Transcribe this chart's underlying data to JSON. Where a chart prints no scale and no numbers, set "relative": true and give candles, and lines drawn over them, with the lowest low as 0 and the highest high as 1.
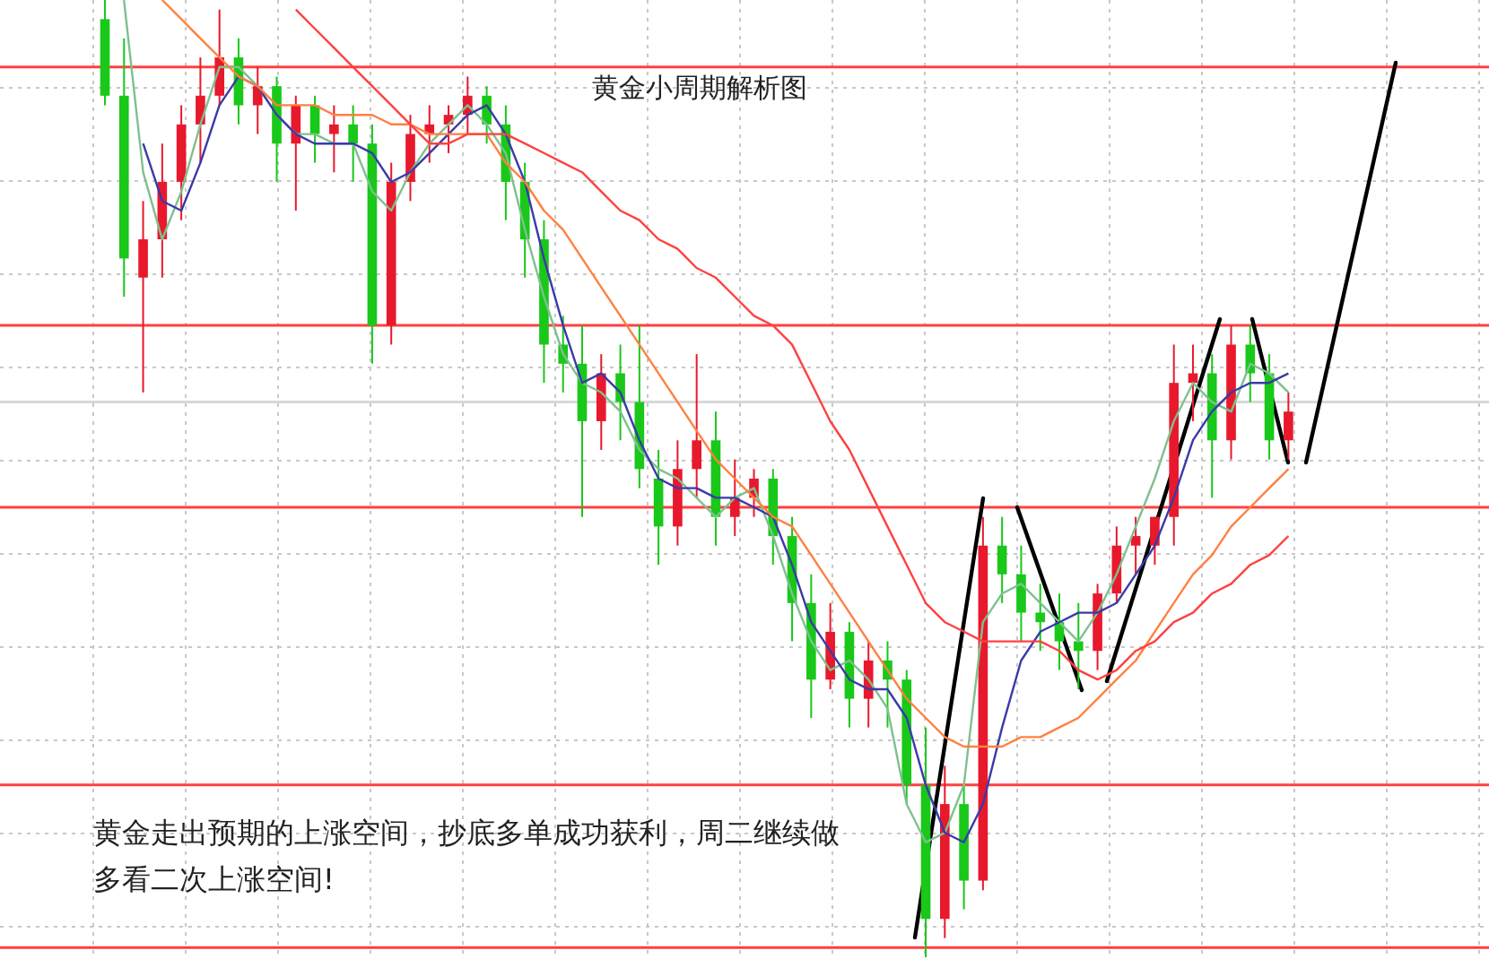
{
  "chart_data": {
    "type": "candlestick",
    "title": "黄金小周期解析图",
    "relative": true,
    "grid": true,
    "categories": [
      null,
      null,
      null,
      null,
      null,
      null,
      null,
      null,
      null,
      null,
      null,
      null,
      null,
      null,
      null,
      null,
      null,
      null,
      null,
      null,
      null,
      null,
      null,
      null,
      null,
      null,
      null,
      null,
      null,
      null,
      null,
      null,
      null,
      null,
      null,
      null,
      null,
      null,
      null,
      null,
      null,
      null,
      null,
      null,
      null,
      null,
      null,
      null,
      null,
      null,
      null,
      null,
      null,
      null,
      null,
      null,
      null,
      null,
      null,
      null,
      null,
      null,
      null
    ],
    "ohlc": [
      [
        0.98,
        1.0,
        0.89,
        0.9
      ],
      [
        0.9,
        0.96,
        0.69,
        0.73
      ],
      [
        0.71,
        0.79,
        0.59,
        0.75
      ],
      [
        0.75,
        0.85,
        0.71,
        0.81
      ],
      [
        0.81,
        0.89,
        0.77,
        0.87
      ],
      [
        0.87,
        0.94,
        0.83,
        0.9
      ],
      [
        0.9,
        0.99,
        0.89,
        0.94
      ],
      [
        0.94,
        0.96,
        0.87,
        0.89
      ],
      [
        0.89,
        0.93,
        0.86,
        0.91
      ],
      [
        0.91,
        0.92,
        0.81,
        0.85
      ],
      [
        0.85,
        0.9,
        0.78,
        0.89
      ],
      [
        0.89,
        0.9,
        0.83,
        0.86
      ],
      [
        0.86,
        0.89,
        0.82,
        0.87
      ],
      [
        0.87,
        0.89,
        0.81,
        0.85
      ],
      [
        0.85,
        0.87,
        0.62,
        0.66
      ],
      [
        0.66,
        0.83,
        0.64,
        0.81
      ],
      [
        0.81,
        0.88,
        0.79,
        0.86
      ],
      [
        0.86,
        0.89,
        0.83,
        0.87
      ],
      [
        0.87,
        0.89,
        0.84,
        0.88
      ],
      [
        0.88,
        0.92,
        0.86,
        0.9
      ],
      [
        0.9,
        0.91,
        0.85,
        0.87
      ],
      [
        0.87,
        0.89,
        0.77,
        0.81
      ],
      [
        0.81,
        0.83,
        0.71,
        0.75
      ],
      [
        0.75,
        0.77,
        0.6,
        0.64
      ],
      [
        0.64,
        0.67,
        0.59,
        0.62
      ],
      [
        0.62,
        0.66,
        0.46,
        0.56
      ],
      [
        0.56,
        0.63,
        0.53,
        0.61
      ],
      [
        0.61,
        0.64,
        0.54,
        0.58
      ],
      [
        0.58,
        0.66,
        0.49,
        0.51
      ],
      [
        0.5,
        0.53,
        0.41,
        0.45
      ],
      [
        0.45,
        0.54,
        0.43,
        0.51
      ],
      [
        0.51,
        0.63,
        0.48,
        0.54
      ],
      [
        0.54,
        0.57,
        0.43,
        0.46
      ],
      [
        0.46,
        0.52,
        0.44,
        0.48
      ],
      [
        0.48,
        0.51,
        0.46,
        0.5
      ],
      [
        0.5,
        0.51,
        0.41,
        0.44
      ],
      [
        0.44,
        0.46,
        0.33,
        0.37
      ],
      [
        0.37,
        0.4,
        0.25,
        0.29
      ],
      [
        0.29,
        0.37,
        0.28,
        0.34
      ],
      [
        0.34,
        0.35,
        0.24,
        0.27
      ],
      [
        0.27,
        0.33,
        0.24,
        0.31
      ],
      [
        0.31,
        0.33,
        0.24,
        0.29
      ],
      [
        0.29,
        0.3,
        0.16,
        0.18
      ],
      [
        0.18,
        0.24,
        0,
        0.04
      ],
      [
        0.04,
        0.2,
        0.02,
        0.16
      ],
      [
        0.16,
        0.18,
        0.05,
        0.08
      ],
      [
        0.08,
        0.46,
        0.07,
        0.43
      ],
      [
        0.43,
        0.46,
        0.37,
        0.4
      ],
      [
        0.4,
        0.43,
        0.33,
        0.36
      ],
      [
        0.36,
        0.39,
        0.32,
        0.35
      ],
      [
        0.35,
        0.38,
        0.3,
        0.33
      ],
      [
        0.33,
        0.37,
        0.28,
        0.32
      ],
      [
        0.32,
        0.39,
        0.3,
        0.38
      ],
      [
        0.38,
        0.45,
        0.37,
        0.43
      ],
      [
        0.43,
        0.46,
        0.4,
        0.44
      ],
      [
        0.43,
        0.46,
        0.41,
        0.46
      ],
      [
        0.46,
        0.64,
        0.43,
        0.6
      ],
      [
        0.6,
        0.64,
        0.56,
        0.61
      ],
      [
        0.61,
        0.63,
        0.48,
        0.54
      ],
      [
        0.54,
        0.66,
        0.52,
        0.64
      ],
      [
        0.64,
        0.66,
        0.58,
        0.61
      ],
      [
        0.61,
        0.63,
        0.52,
        0.54
      ],
      [
        0.54,
        0.59,
        0.52,
        0.57
      ]
    ],
    "colors": [
      "#19c819",
      "#19c819",
      "#e8192c",
      "#e8192c",
      "#e8192c",
      "#e8192c",
      "#e8192c",
      "#19c819",
      "#e8192c",
      "#19c819",
      "#e8192c",
      "#19c819",
      "#e8192c",
      "#19c819",
      "#19c819",
      "#e8192c",
      "#e8192c",
      "#e8192c",
      "#e8192c",
      "#e8192c",
      "#19c819",
      "#19c819",
      "#19c819",
      "#19c819",
      "#19c819",
      "#19c819",
      "#e8192c",
      "#19c819",
      "#19c819",
      "#19c819",
      "#e8192c",
      "#e8192c",
      "#19c819",
      "#e8192c",
      "#e8192c",
      "#19c819",
      "#19c819",
      "#19c819",
      "#e8192c",
      "#19c819",
      "#e8192c",
      "#19c819",
      "#19c819",
      "#19c819",
      "#e8192c",
      "#19c819",
      "#e8192c",
      "#19c819",
      "#19c819",
      "#19c819",
      "#19c819",
      "#19c819",
      "#e8192c",
      "#e8192c",
      "#e8192c",
      "#e8192c",
      "#e8192c",
      "#e8192c",
      "#19c819",
      "#e8192c",
      "#19c819",
      "#19c819",
      "#e8192c"
    ],
    "series": [
      {
        "type": "line",
        "color": "#7fc08f",
        "values": [
          null,
          1.0,
          0.82,
          0.75,
          0.8,
          0.87,
          0.93,
          0.93,
          0.91,
          0.88,
          0.86,
          0.86,
          0.85,
          0.85,
          0.8,
          0.78,
          0.82,
          0.85,
          0.87,
          0.89,
          0.87,
          0.84,
          0.76,
          0.69,
          0.63,
          0.6,
          0.59,
          0.57,
          0.53,
          0.51,
          0.5,
          0.48,
          0.46,
          0.48,
          0.49,
          0.44,
          0.38,
          0.33,
          0.3,
          0.31,
          0.29,
          0.26,
          0.16,
          0.12,
          0.13,
          0.18,
          0.35,
          0.38,
          0.39,
          0.37,
          0.35,
          0.33,
          0.36,
          0.4,
          0.45,
          0.5,
          0.56,
          0.6,
          0.58,
          0.57,
          0.62,
          0.61,
          0.59
        ]
      },
      {
        "type": "line",
        "color": "#3a3aa8",
        "values": [
          null,
          null,
          0.85,
          0.79,
          0.78,
          0.83,
          0.89,
          0.92,
          0.91,
          0.88,
          0.86,
          0.85,
          0.85,
          0.85,
          0.84,
          0.81,
          0.82,
          0.84,
          0.86,
          0.88,
          0.89,
          0.86,
          0.81,
          0.73,
          0.66,
          0.6,
          0.61,
          0.59,
          0.54,
          0.5,
          0.49,
          0.49,
          0.48,
          0.48,
          0.47,
          0.46,
          0.41,
          0.35,
          0.32,
          0.29,
          0.28,
          0.28,
          0.25,
          0.18,
          0.13,
          0.12,
          0.16,
          0.24,
          0.31,
          0.34,
          0.35,
          0.36,
          0.36,
          0.37,
          0.4,
          0.43,
          0.48,
          0.54,
          0.57,
          0.59,
          0.6,
          0.6,
          0.61
        ]
      },
      {
        "type": "line",
        "color": "#ff8040",
        "values": [
          null,
          null,
          null,
          1.0,
          0.98,
          0.96,
          0.94,
          0.92,
          0.91,
          0.89,
          0.89,
          0.89,
          0.88,
          0.88,
          0.88,
          0.87,
          0.87,
          0.86,
          0.86,
          0.86,
          0.86,
          0.83,
          0.81,
          0.78,
          0.76,
          0.73,
          0.7,
          0.67,
          0.64,
          0.61,
          0.58,
          0.55,
          0.52,
          0.5,
          0.48,
          0.46,
          0.45,
          0.42,
          0.39,
          0.36,
          0.33,
          0.3,
          0.27,
          0.25,
          0.23,
          0.22,
          0.22,
          0.22,
          0.23,
          0.23,
          0.24,
          0.25,
          0.27,
          0.29,
          0.31,
          0.34,
          0.37,
          0.4,
          0.42,
          0.45,
          0.47,
          0.49,
          0.51
        ]
      },
      {
        "type": "line",
        "color": "#ff4040",
        "values": [
          null,
          null,
          null,
          null,
          null,
          null,
          null,
          null,
          null,
          null,
          0.99,
          0.97,
          0.95,
          0.93,
          0.91,
          0.89,
          0.87,
          0.85,
          0.85,
          0.86,
          0.86,
          0.86,
          0.85,
          0.84,
          0.83,
          0.82,
          0.8,
          0.78,
          0.77,
          0.75,
          0.74,
          0.72,
          0.71,
          0.69,
          0.67,
          0.66,
          0.64,
          0.6,
          0.56,
          0.53,
          0.49,
          0.45,
          0.41,
          0.37,
          0.35,
          0.34,
          0.33,
          0.33,
          0.33,
          0.33,
          0.32,
          0.3,
          0.29,
          0.3,
          0.32,
          0.33,
          0.35,
          0.36,
          0.38,
          0.39,
          0.41,
          0.42,
          0.44
        ]
      }
    ],
    "ref_lines": [
      {
        "axis": "y",
        "value": 0.93,
        "color": "#ff4040"
      },
      {
        "axis": "y",
        "value": 0.66,
        "color": "#ff4040"
      },
      {
        "axis": "y",
        "value": 0.58,
        "color": "#d8d8d8"
      },
      {
        "axis": "y",
        "value": 0.47,
        "color": "#ff4040"
      },
      {
        "axis": "y",
        "value": 0.18,
        "color": "#ff4040"
      },
      {
        "axis": "y",
        "value": 0.01,
        "color": "#ff4040"
      }
    ],
    "annotations": [
      "黄金走出预期的上涨空间，抄底多单成功获利，周二继续做多看二次上涨空间!"
    ]
  }
}
